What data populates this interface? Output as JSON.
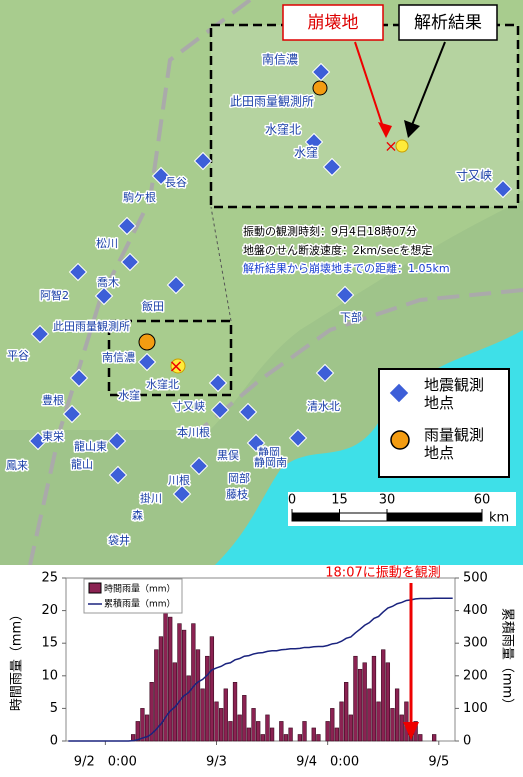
{
  "map": {
    "inset": {
      "collapse_label": "崩壊地",
      "analysis_label": "解析結果",
      "stations": [
        "南信濃",
        "此田雨量観測所",
        "水窪北",
        "水窪",
        "寸又峡"
      ]
    },
    "stations": [
      "長谷",
      "駒ケ根",
      "松川",
      "喬木",
      "阿智2",
      "飯田",
      "下部",
      "此田雨量観測所",
      "南信濃",
      "平谷",
      "水窪北",
      "水窪",
      "寸又峡",
      "豊根",
      "清水北",
      "本川根",
      "東栄",
      "龍山東",
      "静岡",
      "龍山",
      "黒俣",
      "鳳来",
      "静岡南",
      "川根",
      "岡部",
      "藤枝",
      "掛川",
      "森",
      "袋井"
    ],
    "info": [
      "振動の観測時刻：9月4日18時07分",
      "地盤のせん断波速度：2km/secを想定",
      "解析結果から崩壊地までの距離：1.05km"
    ],
    "legend": [
      "地震観測地点",
      "雨量観測地点"
    ],
    "scale": {
      "ticks": [
        0,
        15,
        30,
        60
      ],
      "unit": "km"
    }
  },
  "chart_data": {
    "type": "bar-line",
    "annotation": "18:07に振動を観測",
    "y_label": "時間雨量（mm）",
    "y2_label": "累積雨量（mm）",
    "categories": [
      null,
      null,
      null,
      null,
      null,
      null,
      null,
      null,
      "9/2　0:00",
      null,
      null,
      null,
      null,
      null,
      null,
      null,
      null,
      null,
      null,
      null,
      null,
      null,
      null,
      null,
      null,
      null,
      null,
      null,
      null,
      null,
      null,
      null,
      "9/3",
      null,
      null,
      null,
      null,
      null,
      null,
      null,
      null,
      null,
      null,
      null,
      null,
      null,
      null,
      null,
      null,
      null,
      null,
      null,
      null,
      null,
      null,
      null,
      "9/4　0:00",
      null,
      null,
      null,
      null,
      null,
      null,
      null,
      null,
      null,
      null,
      null,
      null,
      null,
      null,
      null,
      null,
      null,
      null,
      null,
      null,
      null,
      null,
      null,
      "9/5",
      null,
      null,
      null
    ],
    "series": [
      {
        "name": "時間雨量（mm）",
        "color": "#8b2252",
        "values": [
          0,
          0,
          0,
          0,
          0,
          0,
          0,
          0,
          0,
          0,
          0,
          0,
          0,
          0,
          1,
          3,
          5,
          4,
          9,
          14,
          16,
          21,
          19,
          12,
          18,
          17,
          10,
          18,
          14,
          8,
          13,
          16,
          6,
          5,
          8,
          3,
          9,
          4,
          7,
          2,
          5,
          3,
          1,
          4,
          2,
          0,
          3,
          1,
          2,
          0,
          1,
          3,
          0,
          2,
          1,
          0,
          3,
          5,
          2,
          6,
          9,
          4,
          13,
          11,
          12,
          8,
          13,
          6,
          14,
          12,
          5,
          8,
          4,
          6,
          2,
          3,
          1,
          0,
          0,
          1,
          0,
          0,
          0,
          0
        ]
      },
      {
        "name": "累積雨量（mm）",
        "color": "#1a237e",
        "axis": "y2",
        "values": [
          0,
          0,
          0,
          0,
          0,
          0,
          0,
          0,
          0,
          0,
          0,
          0,
          0,
          0,
          1,
          4,
          9,
          13,
          22,
          36,
          52,
          73,
          92,
          104,
          122,
          139,
          149,
          167,
          181,
          189,
          202,
          218,
          224,
          229,
          237,
          240,
          249,
          253,
          260,
          262,
          267,
          270,
          271,
          275,
          277,
          277,
          280,
          281,
          283,
          283,
          284,
          287,
          287,
          289,
          290,
          290,
          293,
          298,
          300,
          306,
          315,
          319,
          332,
          343,
          355,
          363,
          376,
          382,
          396,
          408,
          413,
          421,
          425,
          431,
          433,
          436,
          437,
          437,
          437,
          438,
          438,
          438,
          438,
          438
        ]
      }
    ],
    "annotation_index": 74,
    "ylim": [
      0,
      25
    ],
    "yticks": [
      0,
      5,
      10,
      15,
      20,
      25
    ],
    "y2lim": [
      0,
      500
    ],
    "y2ticks": [
      0,
      100,
      200,
      300,
      400,
      500
    ]
  }
}
